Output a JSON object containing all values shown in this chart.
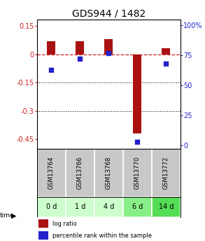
{
  "title": "GDS944 / 1482",
  "samples": [
    "GSM13764",
    "GSM13766",
    "GSM13768",
    "GSM13770",
    "GSM13772"
  ],
  "time_labels": [
    "0 d",
    "1 d",
    "4 d",
    "6 d",
    "14 d"
  ],
  "log_ratio": [
    0.07,
    0.07,
    0.08,
    -0.42,
    0.03
  ],
  "percentile_rank": [
    63,
    72,
    77,
    3,
    68
  ],
  "ylim_left": [
    -0.5,
    0.185
  ],
  "ylim_right": [
    -2.78,
    105
  ],
  "yticks_left": [
    0.15,
    0.0,
    -0.15,
    -0.3,
    -0.45
  ],
  "ytick_labels_left": [
    "0.15",
    "0",
    "-0.15",
    "-0.3",
    "-0.45"
  ],
  "yticks_right": [
    100,
    75,
    50,
    25,
    0
  ],
  "ytick_labels_right": [
    "100%",
    "75",
    "50",
    "25",
    "0"
  ],
  "bar_color": "#aa1111",
  "dot_color": "#2222cc",
  "dashed_color": "#cc2222",
  "title_fontsize": 10,
  "tick_fontsize": 7,
  "bar_width": 0.3,
  "dot_size": 18,
  "sample_bg": "#c8c8c8",
  "time_bg_colors": [
    "#ccffcc",
    "#ccffcc",
    "#ccffcc",
    "#88ee88",
    "#55dd55"
  ],
  "legend_bar_label": "log ratio",
  "legend_dot_label": "percentile rank within the sample"
}
